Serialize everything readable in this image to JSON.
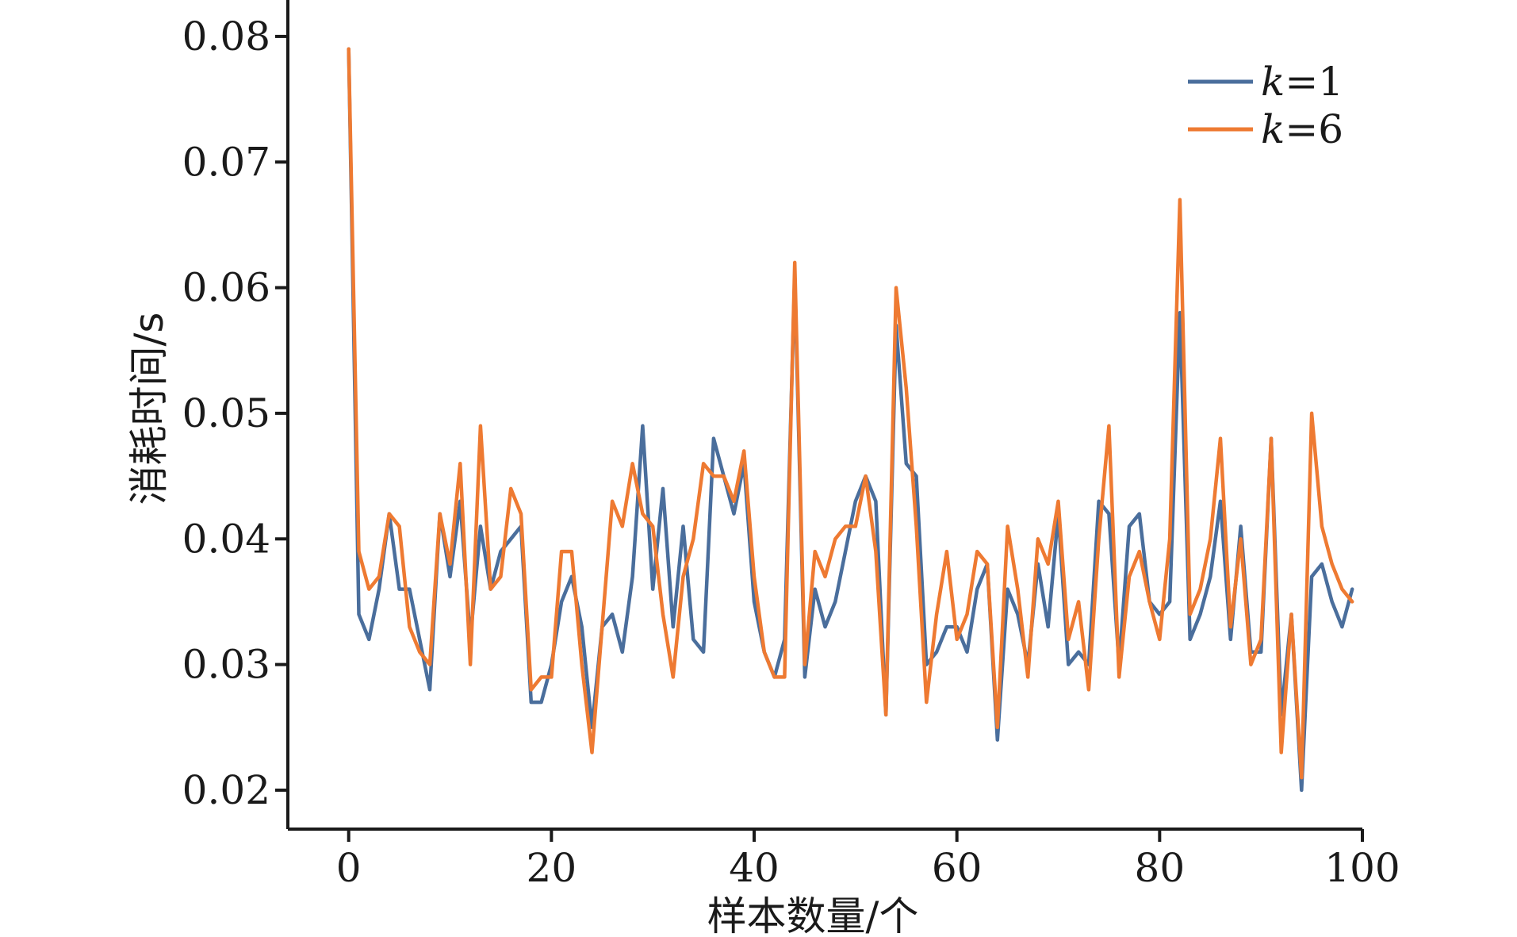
{
  "chart_data": {
    "type": "line",
    "title": "",
    "xlabel": "样本数量/个",
    "ylabel": "消耗时间/s",
    "xlim": [
      -6,
      100
    ],
    "ylim": [
      0.0169,
      0.0829
    ],
    "xticks": [
      0,
      20,
      40,
      60,
      80,
      100
    ],
    "xtick_labels": [
      "0",
      "20",
      "40",
      "60",
      "80",
      "100"
    ],
    "yticks": [
      0.02,
      0.03,
      0.04,
      0.05,
      0.06,
      0.07,
      0.08
    ],
    "ytick_labels": [
      "0.02",
      "0.03",
      "0.04",
      "0.05",
      "0.06",
      "0.07",
      "0.08"
    ],
    "grid": false,
    "legend_position": "top-right",
    "x": [
      0,
      1,
      2,
      3,
      4,
      5,
      6,
      7,
      8,
      9,
      10,
      11,
      12,
      13,
      14,
      15,
      16,
      17,
      18,
      19,
      20,
      21,
      22,
      23,
      24,
      25,
      26,
      27,
      28,
      29,
      30,
      31,
      32,
      33,
      34,
      35,
      36,
      37,
      38,
      39,
      40,
      41,
      42,
      43,
      44,
      45,
      46,
      47,
      48,
      49,
      50,
      51,
      52,
      53,
      54,
      55,
      56,
      57,
      58,
      59,
      60,
      61,
      62,
      63,
      64,
      65,
      66,
      67,
      68,
      69,
      70,
      71,
      72,
      73,
      74,
      75,
      76,
      77,
      78,
      79,
      80,
      81,
      82,
      83,
      84,
      85,
      86,
      87,
      88,
      89,
      90,
      91,
      92,
      93,
      94,
      95,
      96,
      97,
      98,
      99
    ],
    "series": [
      {
        "name": "k=1",
        "color": "#4a6e9c",
        "values": [
          0.079,
          0.034,
          0.032,
          0.036,
          0.042,
          0.036,
          0.036,
          0.032,
          0.028,
          0.042,
          0.037,
          0.043,
          0.032,
          0.041,
          0.036,
          0.039,
          0.04,
          0.041,
          0.027,
          0.027,
          0.03,
          0.035,
          0.037,
          0.033,
          0.025,
          0.033,
          0.034,
          0.031,
          0.037,
          0.049,
          0.036,
          0.044,
          0.033,
          0.041,
          0.032,
          0.031,
          0.048,
          0.045,
          0.042,
          0.046,
          0.035,
          0.031,
          0.029,
          0.032,
          0.061,
          0.029,
          0.036,
          0.033,
          0.035,
          0.039,
          0.043,
          0.045,
          0.043,
          0.026,
          0.057,
          0.046,
          0.045,
          0.03,
          0.031,
          0.033,
          0.033,
          0.031,
          0.036,
          0.038,
          0.024,
          0.036,
          0.034,
          0.03,
          0.038,
          0.033,
          0.042,
          0.03,
          0.031,
          0.03,
          0.043,
          0.042,
          0.03,
          0.041,
          0.042,
          0.035,
          0.034,
          0.035,
          0.058,
          0.032,
          0.034,
          0.037,
          0.043,
          0.032,
          0.041,
          0.031,
          0.031,
          0.048,
          0.026,
          0.034,
          0.02,
          0.037,
          0.038,
          0.035,
          0.033,
          0.036
        ]
      },
      {
        "name": "k=6",
        "color": "#ee7a32",
        "values": [
          0.079,
          0.039,
          0.036,
          0.037,
          0.042,
          0.041,
          0.033,
          0.031,
          0.03,
          0.042,
          0.038,
          0.046,
          0.03,
          0.049,
          0.036,
          0.037,
          0.044,
          0.042,
          0.028,
          0.029,
          0.029,
          0.039,
          0.039,
          0.03,
          0.023,
          0.033,
          0.043,
          0.041,
          0.046,
          0.042,
          0.041,
          0.034,
          0.029,
          0.037,
          0.04,
          0.046,
          0.045,
          0.045,
          0.043,
          0.047,
          0.037,
          0.031,
          0.029,
          0.029,
          0.062,
          0.03,
          0.039,
          0.037,
          0.04,
          0.041,
          0.041,
          0.045,
          0.039,
          0.026,
          0.06,
          0.052,
          0.041,
          0.027,
          0.034,
          0.039,
          0.032,
          0.034,
          0.039,
          0.038,
          0.025,
          0.041,
          0.036,
          0.029,
          0.04,
          0.038,
          0.043,
          0.032,
          0.035,
          0.028,
          0.04,
          0.049,
          0.029,
          0.037,
          0.039,
          0.035,
          0.032,
          0.04,
          0.067,
          0.034,
          0.036,
          0.04,
          0.048,
          0.033,
          0.04,
          0.03,
          0.032,
          0.048,
          0.023,
          0.034,
          0.021,
          0.05,
          0.041,
          0.038,
          0.036,
          0.035
        ]
      }
    ]
  }
}
